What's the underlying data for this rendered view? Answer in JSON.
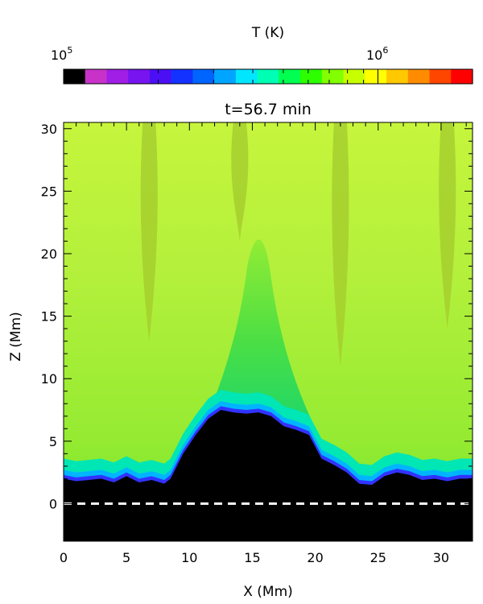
{
  "colorbar": {
    "title": "T (K)",
    "tick_labels": [
      {
        "base": "10",
        "exp": "5",
        "value": 100000
      },
      {
        "base": "10",
        "exp": "6",
        "value": 1000000
      }
    ],
    "scale": "log",
    "range": [
      100000,
      2000000
    ],
    "colors": [
      "#000000",
      "#c832c8",
      "#a01ee6",
      "#7814f0",
      "#4b0ff5",
      "#1432ff",
      "#0064ff",
      "#00a5ff",
      "#00e6ff",
      "#00ffb4",
      "#00ff50",
      "#2dff00",
      "#82ff00",
      "#c8ff00",
      "#ffff00",
      "#ffc800",
      "#ff8c00",
      "#ff4600",
      "#ff0000"
    ]
  },
  "chart_data": {
    "type": "heatmap",
    "title": "t=56.7 min",
    "xlabel": "X (Mm)",
    "ylabel": "Z (Mm)",
    "xlim": [
      0,
      32.5
    ],
    "ylim": [
      -3,
      30.5
    ],
    "xticks": [
      "0",
      "5",
      "10",
      "15",
      "20",
      "25",
      "30"
    ],
    "yticks": [
      "0",
      "5",
      "10",
      "15",
      "20",
      "25",
      "30"
    ],
    "quantity": "temperature",
    "reference_line": {
      "z": 0,
      "style": "dashed",
      "color": "#ffffff"
    },
    "cool_region_boundary": {
      "x": [
        0,
        1,
        2,
        3,
        4,
        5,
        6,
        7,
        8,
        8.5,
        9.5,
        10.5,
        11.5,
        12.5,
        13.5,
        14.5,
        15.5,
        16.5,
        17.5,
        18.5,
        19.5,
        20.5,
        21.5,
        22.5,
        23.5,
        24.5,
        25.5,
        26.5,
        27.5,
        28.5,
        29.5,
        30.5,
        31.5,
        32.5
      ],
      "z": [
        2,
        1.8,
        1.9,
        2.0,
        1.7,
        2.2,
        1.7,
        1.9,
        1.6,
        2.0,
        4.0,
        5.5,
        6.8,
        7.5,
        7.3,
        7.2,
        7.3,
        7.0,
        6.2,
        5.9,
        5.5,
        3.6,
        3.1,
        2.5,
        1.6,
        1.5,
        2.2,
        2.5,
        2.3,
        1.9,
        2.0,
        1.8,
        2.0,
        2.0
      ]
    },
    "dominant_temperature_K": 1000000,
    "filaments": [
      {
        "x": 6.8,
        "z_bottom": 13,
        "z_top": 30.5,
        "level": "cooler"
      },
      {
        "x": 14.0,
        "z_bottom": 21,
        "z_top": 30.5,
        "level": "cooler"
      },
      {
        "x": 22.0,
        "z_bottom": 11,
        "z_top": 30.5,
        "level": "cooler"
      },
      {
        "x": 30.5,
        "z_bottom": 14,
        "z_top": 30.5,
        "level": "cooler"
      }
    ]
  }
}
